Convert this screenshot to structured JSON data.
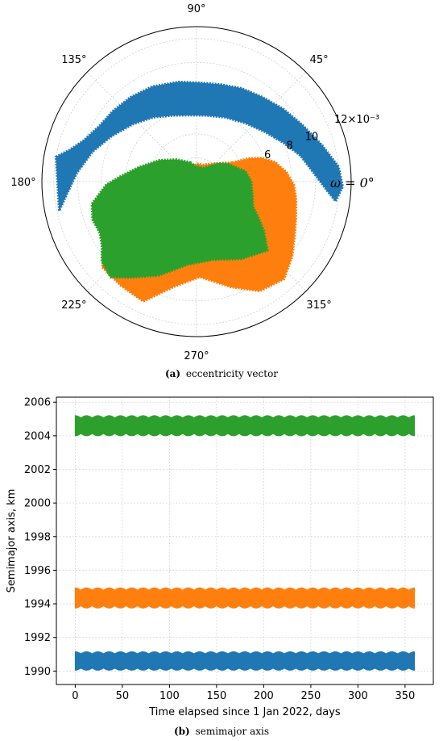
{
  "chart_data": [
    {
      "type": "scatter",
      "projection": "polar",
      "caption_label": "(a)",
      "caption_text": "eccentricity vector",
      "theta_label": "ω = 0°",
      "angle_ticks": [
        "0°",
        "45°",
        "90°",
        "135°",
        "180°",
        "225°",
        "270°",
        "315°"
      ],
      "radial_ticks": [
        "6",
        "8",
        "10"
      ],
      "radial_offset_label": "12×10⁻³",
      "radial_range": [
        0,
        0.013
      ],
      "grid": true,
      "series": [
        {
          "color": "#1f77b4",
          "outline": [
            [
              170,
              0.012
            ],
            [
              166,
              0.011
            ],
            [
              160,
              0.0101
            ],
            [
              150,
              0.0094
            ],
            [
              140,
              0.0092
            ],
            [
              128,
              0.009
            ],
            [
              115,
              0.0088
            ],
            [
              100,
              0.0085
            ],
            [
              88,
              0.0083
            ],
            [
              76,
              0.0084
            ],
            [
              64,
              0.0087
            ],
            [
              52,
              0.009
            ],
            [
              40,
              0.0095
            ],
            [
              28,
              0.0101
            ],
            [
              16,
              0.011
            ],
            [
              6,
              0.012
            ],
            [
              -2,
              0.0123
            ],
            [
              -8,
              0.0118
            ],
            [
              -4,
              0.011
            ],
            [
              4,
              0.0099
            ],
            [
              14,
              0.009
            ],
            [
              24,
              0.008
            ],
            [
              36,
              0.0071
            ],
            [
              50,
              0.0064
            ],
            [
              66,
              0.0059
            ],
            [
              82,
              0.0056
            ],
            [
              96,
              0.0056
            ],
            [
              110,
              0.0059
            ],
            [
              124,
              0.0065
            ],
            [
              138,
              0.0072
            ],
            [
              152,
              0.0081
            ],
            [
              164,
              0.0091
            ],
            [
              176,
              0.0101
            ],
            [
              186,
              0.011
            ],
            [
              192,
              0.0118
            ]
          ]
        },
        {
          "color": "#ff7f0e",
          "outline": [
            [
              28,
              0.0034
            ],
            [
              44,
              0.0022
            ],
            [
              70,
              0.0015
            ],
            [
              88,
              0.0015
            ],
            [
              108,
              0.0013
            ],
            [
              150,
              0.0016
            ],
            [
              190,
              0.0022
            ],
            [
              210,
              0.006
            ],
            [
              215,
              0.009
            ],
            [
              222,
              0.0107
            ],
            [
              234,
              0.0108
            ],
            [
              246,
              0.011
            ],
            [
              258,
              0.009
            ],
            [
              272,
              0.008
            ],
            [
              288,
              0.0093
            ],
            [
              300,
              0.0106
            ],
            [
              312,
              0.011
            ],
            [
              322,
              0.0102
            ],
            [
              330,
              0.0095
            ],
            [
              340,
              0.0089
            ],
            [
              350,
              0.0085
            ],
            [
              358,
              0.0082
            ],
            [
              6,
              0.0076
            ],
            [
              14,
              0.0068
            ],
            [
              20,
              0.0058
            ],
            [
              24,
              0.0048
            ]
          ]
        },
        {
          "color": "#2ca02c",
          "outline": [
            [
              108,
              0.0017
            ],
            [
              94,
              0.0013
            ],
            [
              62,
              0.0013
            ],
            [
              40,
              0.0024
            ],
            [
              30,
              0.003
            ],
            [
              12,
              0.0042
            ],
            [
              0,
              0.0046
            ],
            [
              -12,
              0.0048
            ],
            [
              -24,
              0.0052
            ],
            [
              -30,
              0.006
            ],
            [
              -36,
              0.007
            ],
            [
              -44,
              0.0083
            ],
            [
              -60,
              0.0075
            ],
            [
              -78,
              0.0067
            ],
            [
              -96,
              0.007
            ],
            [
              -112,
              0.0085
            ],
            [
              -124,
              0.0097
            ],
            [
              -132,
              0.0108
            ],
            [
              -140,
              0.0104
            ],
            [
              -146,
              0.0096
            ],
            [
              -152,
              0.0092
            ],
            [
              -160,
              0.0093
            ],
            [
              -168,
              0.009
            ],
            [
              -178,
              0.0076
            ],
            [
              176,
              0.0064
            ],
            [
              166,
              0.005
            ],
            [
              150,
              0.0036
            ],
            [
              132,
              0.0025
            ]
          ]
        }
      ]
    },
    {
      "type": "line",
      "caption_label": "(b)",
      "caption_text": "semimajor axis",
      "xlabel": "Time elapsed since 1 Jan 2022, days",
      "ylabel": "Semimajor axis, km",
      "xlim": [
        -20,
        380
      ],
      "ylim": [
        1989.2,
        2006.3
      ],
      "xticks": [
        0,
        50,
        100,
        150,
        200,
        250,
        300,
        350
      ],
      "yticks": [
        1990,
        1992,
        1994,
        1996,
        1998,
        2000,
        2002,
        2004,
        2006
      ],
      "grid": true,
      "oscillation_period_days": 12,
      "series": [
        {
          "color": "#2ca02c",
          "x_range": [
            0,
            360
          ],
          "y_center": 2004.6,
          "y_amplitude": 0.6
        },
        {
          "color": "#ff7f0e",
          "x_range": [
            0,
            360
          ],
          "y_center": 1994.35,
          "y_amplitude": 0.6
        },
        {
          "color": "#1f77b4",
          "x_range": [
            0,
            360
          ],
          "y_center": 1990.6,
          "y_amplitude": 0.55
        }
      ]
    }
  ]
}
